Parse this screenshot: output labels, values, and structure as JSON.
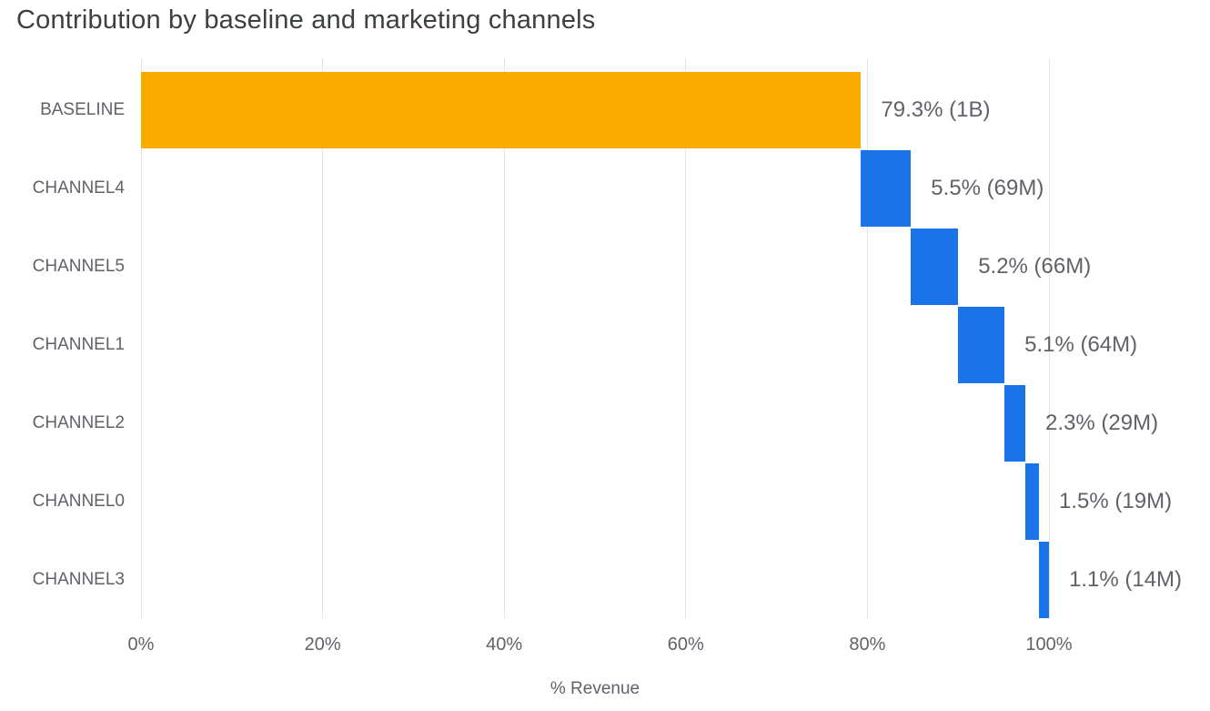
{
  "colors": {
    "baseline_bar": "#F9AB00",
    "channel_bar": "#1A73E8",
    "gridline": "#E4E4E4",
    "axis_text": "#5F6368",
    "title_text": "#3C4043"
  },
  "chart_data": {
    "type": "bar",
    "subtype": "horizontal-waterfall",
    "title": "Contribution by baseline and marketing channels",
    "xlabel": "% Revenue",
    "categories": [
      "BASELINE",
      "CHANNEL4",
      "CHANNEL5",
      "CHANNEL1",
      "CHANNEL2",
      "CHANNEL0",
      "CHANNEL3"
    ],
    "values_pct": [
      79.3,
      5.5,
      5.2,
      5.1,
      2.3,
      1.5,
      1.1
    ],
    "values_abs": [
      "1B",
      "69M",
      "66M",
      "64M",
      "29M",
      "19M",
      "14M"
    ],
    "bar_labels": [
      "79.3% (1B)",
      "5.5% (69M)",
      "5.2% (66M)",
      "5.1% (64M)",
      "2.3% (29M)",
      "1.5% (19M)",
      "1.1% (14M)"
    ],
    "cumulative_start_pct": [
      0,
      79.3,
      84.8,
      90.0,
      95.1,
      97.4,
      98.9
    ],
    "cumulative_end_pct": [
      79.3,
      84.8,
      90.0,
      95.1,
      97.4,
      98.9,
      100.0
    ],
    "xlim": [
      0,
      100
    ],
    "xticks": [
      "0%",
      "20%",
      "40%",
      "60%",
      "80%",
      "100%"
    ],
    "xtick_values": [
      0,
      20,
      40,
      60,
      80,
      100
    ],
    "grid": true,
    "legend": false
  }
}
